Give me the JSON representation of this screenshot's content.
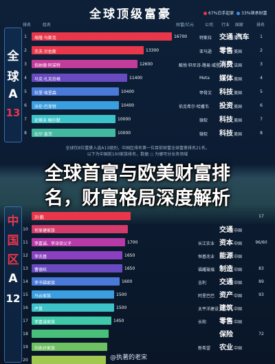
{
  "header": {
    "title": "全球顶级富豪",
    "legend_a": "67%白手起家",
    "legend_b": "33%继承财富",
    "col_no": "排名",
    "col_name": "姓名",
    "col_wealth": "财富/亿元",
    "col_company": "公司",
    "col_industry": "行业",
    "col_country": "国家",
    "col_rank": "排名",
    "colors": {
      "red": "#e8364a",
      "pink": "#b83aa8",
      "purple": "#6a3ab8",
      "blue": "#3a8ee8",
      "teal": "#3ec9cf",
      "green": "#49c07a",
      "yellow": "#f0c83a"
    }
  },
  "panel_a": {
    "chars": [
      "全",
      "球",
      "A",
      "13"
    ]
  },
  "panel_b": {
    "chars": [
      "中",
      "国",
      "区",
      "A",
      "12"
    ]
  },
  "rows_a": [
    {
      "no": "1",
      "name": "埃隆·马斯克",
      "value": "16700",
      "company": "特斯拉",
      "industry": "交通\n汽车",
      "country": "美国",
      "rank": "1"
    },
    {
      "no": "2",
      "name": "杰夫·贝佐斯",
      "value": "13300",
      "company": "亚马逊",
      "industry": "零售",
      "country": "美国",
      "rank": "2"
    },
    {
      "no": "3",
      "name": "伯纳德·阿诺特",
      "value": "12600",
      "company": "酩悦·轩尼诗-路易·威登",
      "industry": "消费",
      "country": "法国",
      "rank": "3"
    },
    {
      "no": "4",
      "name": "马克·扎克伯格",
      "value": "11400",
      "company": "Meta",
      "industry": "媒体",
      "country": "美国",
      "rank": "4"
    },
    {
      "no": "5",
      "name": "拉里·埃里森",
      "value": "10400",
      "company": "甲骨文",
      "industry": "科技",
      "country": "美国",
      "rank": "5"
    },
    {
      "no": "6",
      "name": "沃伦·巴菲特",
      "value": "10400",
      "company": "伯克希尔·哈撒韦",
      "industry": "投资",
      "country": "美国",
      "rank": "6"
    },
    {
      "no": "7",
      "name": "史蒂夫·鲍尔默",
      "value": "10000",
      "company": "微软",
      "industry": "科技",
      "country": "美国",
      "rank": "7"
    },
    {
      "no": "8",
      "name": "比尔·盖茨",
      "value": "10000",
      "company": "微软",
      "industry": "科技",
      "country": "美国",
      "rank": "8"
    }
  ],
  "note_a": "全球仅8位富豪入选A13级别，中国区排名第一位目前财富全球富豪排名21名。",
  "note_b": "以下为中国前100家族排名，数据 ○ 为便可分业务领域",
  "banner": {
    "line1": "全球首富与欧美财富排",
    "line2": "名，财富格局深度解析"
  },
  "rows_b": [
    {
      "no": "",
      "name": "刘·鹏",
      "value": "",
      "company": "",
      "industry": "",
      "country": "",
      "rank": "17"
    },
    {
      "no": "10",
      "name": "何享健家族",
      "value": "",
      "company": "",
      "industry": "交通",
      "country": "中国",
      "rank": ""
    },
    {
      "no": "11",
      "name": "李嘉诚、李泽钜父子",
      "value": "1700",
      "company": "长江实业",
      "industry": "资本",
      "country": "中国",
      "rank": "96/60"
    },
    {
      "no": "12",
      "name": "李兆基",
      "value": "1650",
      "company": "恒基兆业",
      "industry": "能源",
      "country": "中国",
      "rank": ""
    },
    {
      "no": "13",
      "name": "曹德旺",
      "value": "1650",
      "company": "福耀玻璃",
      "industry": "制造",
      "country": "中国",
      "rank": "83"
    },
    {
      "no": "14",
      "name": "李书福家族",
      "value": "1600",
      "company": "吉利",
      "industry": "交通",
      "country": "中国",
      "rank": "89"
    },
    {
      "no": "15",
      "name": "马云家族",
      "value": "1500",
      "company": "阿里巴巴",
      "industry": "资产",
      "country": "中国",
      "rank": "93"
    },
    {
      "no": "16",
      "name": "严昊",
      "value": "1500",
      "company": "太平洋建设",
      "industry": "建筑",
      "country": "中国",
      "rank": ""
    },
    {
      "no": "17",
      "name": "李嘉诚家族",
      "value": "1450",
      "company": "长和",
      "industry": "零售",
      "country": "中国",
      "rank": ""
    },
    {
      "no": "18",
      "name": "",
      "value": "",
      "company": "",
      "industry": "保险",
      "country": "",
      "rank": "72"
    },
    {
      "no": "19",
      "name": "刘永好家族",
      "value": "",
      "company": "新希望",
      "industry": "农业",
      "country": "中国",
      "rank": ""
    },
    {
      "no": "20",
      "name": "",
      "value": "",
      "company": "",
      "industry": "",
      "country": "",
      "rank": ""
    }
  ],
  "chart_data": [
    {
      "type": "bar",
      "categories": [
        "埃隆·马斯克",
        "杰夫·贝佐斯",
        "伯纳德·阿诺特",
        "马克·扎克伯格",
        "拉里·埃里森",
        "沃伦·巴菲特",
        "史蒂夫·鲍尔默",
        "比尔·盖茨"
      ],
      "values": [
        16700,
        13300,
        12600,
        11400,
        10400,
        10400,
        10000,
        10000
      ],
      "ylabel": "财富/亿元",
      "orientation": "horizontal",
      "max": 17000
    },
    {
      "type": "bar",
      "categories": [
        "刘·鹏",
        "何享健家族",
        "李嘉诚、李泽钜父子",
        "李兆基",
        "曹德旺",
        "李书福家族",
        "马云家族",
        "严昊",
        "李嘉诚家族",
        "",
        "刘永好家族",
        ""
      ],
      "values": [
        1800,
        1750,
        1700,
        1650,
        1650,
        1600,
        1500,
        1500,
        1450,
        1400,
        1380,
        1350
      ],
      "orientation": "horizontal",
      "max": 2500
    }
  ],
  "watermark": "@执著的老宋"
}
